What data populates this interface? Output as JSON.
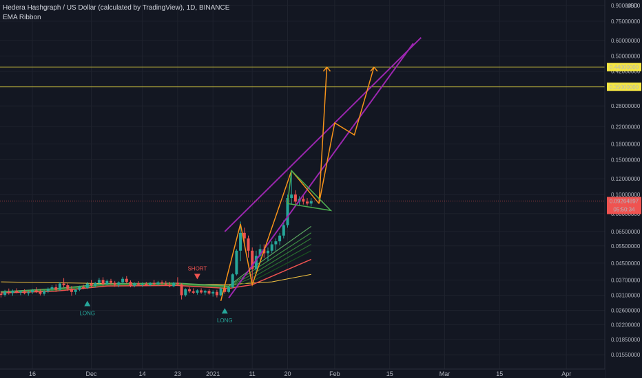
{
  "header": {
    "title": "Hedera Hashgraph / US Dollar (calculated by TradingView), 1D, BINANCE",
    "indicator": "EMA Ribbon"
  },
  "chart_data": {
    "type": "candlestick",
    "currency_label": "USD",
    "y_scale": "log",
    "ylim": [
      0.0148,
      0.93
    ],
    "y_ticks": [
      "0.01550000",
      "0.01850000",
      "0.02200000",
      "0.02600000",
      "0.03100000",
      "0.03700000",
      "0.04500000",
      "0.05500000",
      "0.06500000",
      "0.08000000",
      "0.10000000",
      "0.12000000",
      "0.15000000",
      "0.18000000",
      "0.22000000",
      "0.28000000",
      "0.35000000",
      "0.42000000",
      "0.50000000",
      "0.60000000",
      "0.75000000",
      "0.90000000"
    ],
    "y_tick_values": [
      0.0155,
      0.0185,
      0.022,
      0.026,
      0.031,
      0.037,
      0.045,
      0.055,
      0.065,
      0.08,
      0.1,
      0.12,
      0.15,
      0.18,
      0.22,
      0.28,
      0.35,
      0.42,
      0.5,
      0.6,
      0.75,
      0.9
    ],
    "x_ticks": [
      {
        "label": "16",
        "date": "2020-11-16"
      },
      {
        "label": "Dec",
        "date": "2020-12-01"
      },
      {
        "label": "14",
        "date": "2020-12-14"
      },
      {
        "label": "23",
        "date": "2020-12-23"
      },
      {
        "label": "2021",
        "date": "2021-01-01"
      },
      {
        "label": "11",
        "date": "2021-01-11"
      },
      {
        "label": "20",
        "date": "2021-01-20"
      },
      {
        "label": "Feb",
        "date": "2021-02-01"
      },
      {
        "label": "15",
        "date": "2021-02-15"
      },
      {
        "label": "Mar",
        "date": "2021-03-01"
      },
      {
        "label": "15",
        "date": "2021-03-15"
      },
      {
        "label": "Apr",
        "date": "2021-04-01"
      }
    ],
    "current_price": {
      "label": "0.09264897",
      "value": 0.09264897,
      "color": "#ef5350"
    },
    "countdown": {
      "label": "05:50:34"
    },
    "horizontal_levels": [
      {
        "label": "0.44000000",
        "value": 0.44,
        "color": "#f5e642"
      },
      {
        "label": "0.35000000",
        "value": 0.35,
        "color": "#f5e642"
      }
    ],
    "signals": [
      {
        "label": "LONG",
        "date": "2020-11-30",
        "direction": "up",
        "price": 0.0305,
        "color": "#26a69a"
      },
      {
        "label": "SHORT",
        "date": "2020-12-28",
        "direction": "down",
        "price": 0.0385,
        "color": "#ef5350"
      },
      {
        "label": "LONG",
        "date": "2021-01-04",
        "direction": "up",
        "price": 0.028,
        "color": "#26a69a"
      }
    ],
    "candles": [
      [
        "2020-11-08",
        0.0315,
        0.0325,
        0.0302,
        0.0311
      ],
      [
        "2020-11-09",
        0.0311,
        0.033,
        0.0305,
        0.0322
      ],
      [
        "2020-11-10",
        0.0322,
        0.0335,
        0.0312,
        0.0318
      ],
      [
        "2020-11-11",
        0.0318,
        0.0331,
        0.0308,
        0.0326
      ],
      [
        "2020-11-12",
        0.0326,
        0.0336,
        0.0317,
        0.032
      ],
      [
        "2020-11-13",
        0.032,
        0.0328,
        0.031,
        0.0324
      ],
      [
        "2020-11-14",
        0.0324,
        0.0332,
        0.0313,
        0.0317
      ],
      [
        "2020-11-15",
        0.0317,
        0.0327,
        0.0308,
        0.0321
      ],
      [
        "2020-11-16",
        0.0321,
        0.0334,
        0.0314,
        0.0328
      ],
      [
        "2020-11-17",
        0.0328,
        0.034,
        0.0318,
        0.0323
      ],
      [
        "2020-11-18",
        0.0323,
        0.0333,
        0.0309,
        0.0315
      ],
      [
        "2020-11-19",
        0.0315,
        0.0329,
        0.0308,
        0.0325
      ],
      [
        "2020-11-20",
        0.0325,
        0.0339,
        0.0318,
        0.0333
      ],
      [
        "2020-11-21",
        0.0333,
        0.0348,
        0.0325,
        0.034
      ],
      [
        "2020-11-22",
        0.034,
        0.0352,
        0.0322,
        0.033
      ],
      [
        "2020-11-23",
        0.033,
        0.0361,
        0.0326,
        0.0355
      ],
      [
        "2020-11-24",
        0.0355,
        0.0378,
        0.034,
        0.0348
      ],
      [
        "2020-11-25",
        0.0348,
        0.0356,
        0.0326,
        0.0334
      ],
      [
        "2020-11-26",
        0.0334,
        0.0345,
        0.0308,
        0.0322
      ],
      [
        "2020-11-27",
        0.0322,
        0.0334,
        0.0312,
        0.033
      ],
      [
        "2020-11-28",
        0.033,
        0.0346,
        0.0325,
        0.0341
      ],
      [
        "2020-11-29",
        0.0341,
        0.035,
        0.0332,
        0.0337
      ],
      [
        "2020-11-30",
        0.0337,
        0.0362,
        0.0333,
        0.0355
      ],
      [
        "2020-12-01",
        0.0355,
        0.037,
        0.034,
        0.0346
      ],
      [
        "2020-12-02",
        0.0346,
        0.0362,
        0.0338,
        0.0357
      ],
      [
        "2020-12-03",
        0.0357,
        0.0379,
        0.035,
        0.037
      ],
      [
        "2020-12-04",
        0.037,
        0.0382,
        0.0345,
        0.0352
      ],
      [
        "2020-12-05",
        0.0352,
        0.0372,
        0.0348,
        0.0366
      ],
      [
        "2020-12-06",
        0.0366,
        0.0375,
        0.035,
        0.0358
      ],
      [
        "2020-12-07",
        0.0358,
        0.0366,
        0.0342,
        0.035
      ],
      [
        "2020-12-08",
        0.035,
        0.0364,
        0.034,
        0.036
      ],
      [
        "2020-12-09",
        0.036,
        0.0384,
        0.0352,
        0.0375
      ],
      [
        "2020-12-10",
        0.0375,
        0.0387,
        0.0355,
        0.0362
      ],
      [
        "2020-12-11",
        0.0362,
        0.0368,
        0.034,
        0.0346
      ],
      [
        "2020-12-12",
        0.0346,
        0.036,
        0.034,
        0.0356
      ],
      [
        "2020-12-13",
        0.0356,
        0.0365,
        0.0346,
        0.035
      ],
      [
        "2020-12-14",
        0.035,
        0.036,
        0.0342,
        0.0354
      ],
      [
        "2020-12-15",
        0.0354,
        0.0362,
        0.0344,
        0.0348
      ],
      [
        "2020-12-16",
        0.0348,
        0.0362,
        0.0344,
        0.0358
      ],
      [
        "2020-12-17",
        0.0358,
        0.037,
        0.0348,
        0.0352
      ],
      [
        "2020-12-18",
        0.0352,
        0.0366,
        0.0346,
        0.036
      ],
      [
        "2020-12-19",
        0.036,
        0.0368,
        0.035,
        0.0355
      ],
      [
        "2020-12-20",
        0.0355,
        0.0366,
        0.0346,
        0.035
      ],
      [
        "2020-12-21",
        0.035,
        0.0362,
        0.034,
        0.0344
      ],
      [
        "2020-12-22",
        0.0344,
        0.0362,
        0.034,
        0.0358
      ],
      [
        "2020-12-23",
        0.0358,
        0.0382,
        0.0345,
        0.0352
      ],
      [
        "2020-12-24",
        0.0352,
        0.0356,
        0.0295,
        0.031
      ],
      [
        "2020-12-25",
        0.031,
        0.0336,
        0.0305,
        0.0332
      ],
      [
        "2020-12-26",
        0.0332,
        0.034,
        0.0318,
        0.0324
      ],
      [
        "2020-12-27",
        0.0324,
        0.0336,
        0.0314,
        0.0319
      ],
      [
        "2020-12-28",
        0.0319,
        0.0332,
        0.0312,
        0.0328
      ],
      [
        "2020-12-29",
        0.0328,
        0.0336,
        0.0315,
        0.032
      ],
      [
        "2020-12-30",
        0.032,
        0.033,
        0.031,
        0.0326
      ],
      [
        "2020-12-31",
        0.0326,
        0.0334,
        0.0312,
        0.0316
      ],
      [
        "2021-01-01",
        0.0316,
        0.0328,
        0.0305,
        0.0322
      ],
      [
        "2021-01-02",
        0.0322,
        0.033,
        0.0302,
        0.031
      ],
      [
        "2021-01-03",
        0.031,
        0.034,
        0.0306,
        0.0336
      ],
      [
        "2021-01-04",
        0.0336,
        0.0352,
        0.0315,
        0.0322
      ],
      [
        "2021-01-05",
        0.0322,
        0.0345,
        0.0318,
        0.034
      ],
      [
        "2021-01-06",
        0.034,
        0.04,
        0.0336,
        0.0395
      ],
      [
        "2021-01-07",
        0.0395,
        0.053,
        0.039,
        0.052
      ],
      [
        "2021-01-08",
        0.052,
        0.073,
        0.046,
        0.064
      ],
      [
        "2021-01-09",
        0.064,
        0.068,
        0.056,
        0.06
      ],
      [
        "2021-01-10",
        0.06,
        0.062,
        0.048,
        0.052
      ],
      [
        "2021-01-11",
        0.052,
        0.054,
        0.0355,
        0.042
      ],
      [
        "2021-01-12",
        0.042,
        0.052,
        0.04,
        0.049
      ],
      [
        "2021-01-13",
        0.049,
        0.056,
        0.047,
        0.053
      ],
      [
        "2021-01-14",
        0.053,
        0.056,
        0.048,
        0.0505
      ],
      [
        "2021-01-15",
        0.0505,
        0.054,
        0.046,
        0.052
      ],
      [
        "2021-01-16",
        0.052,
        0.058,
        0.0505,
        0.056
      ],
      [
        "2021-01-17",
        0.056,
        0.06,
        0.052,
        0.058
      ],
      [
        "2021-01-18",
        0.058,
        0.064,
        0.0555,
        0.062
      ],
      [
        "2021-01-19",
        0.062,
        0.074,
        0.06,
        0.07
      ],
      [
        "2021-01-20",
        0.07,
        0.1,
        0.068,
        0.096
      ],
      [
        "2021-01-21",
        0.096,
        0.13,
        0.089,
        0.1
      ],
      [
        "2021-01-22",
        0.1,
        0.105,
        0.088,
        0.092
      ],
      [
        "2021-01-23",
        0.092,
        0.098,
        0.088,
        0.095
      ],
      [
        "2021-01-24",
        0.095,
        0.099,
        0.089,
        0.092
      ],
      [
        "2021-01-25",
        0.092,
        0.096,
        0.088,
        0.09
      ],
      [
        "2021-01-26",
        0.09,
        0.096,
        0.087,
        0.0926
      ]
    ],
    "ema_ribbon": {
      "colors": [
        "#1b5e20",
        "#2e7d32",
        "#388e3c",
        "#43a047",
        "#66bb6a",
        "#81c784"
      ],
      "long_color": "#f5c542",
      "base_color": "#ef5350",
      "long_ema": [
        [
          "2020-11-08",
          0.0362
        ],
        [
          "2020-12-01",
          0.0356
        ],
        [
          "2020-12-23",
          0.035
        ],
        [
          "2021-01-06",
          0.0352
        ],
        [
          "2021-01-16",
          0.0362
        ],
        [
          "2021-01-26",
          0.0395
        ]
      ],
      "base": [
        [
          "2020-11-08",
          0.0318
        ],
        [
          "2020-11-22",
          0.0325
        ],
        [
          "2020-12-05",
          0.0345
        ],
        [
          "2020-12-23",
          0.0347
        ],
        [
          "2021-01-05",
          0.0335
        ],
        [
          "2021-01-11",
          0.035
        ],
        [
          "2021-01-26",
          0.047
        ]
      ],
      "bands": [
        [
          [
            "2020-11-08",
            0.0319
          ],
          [
            "2020-11-22",
            0.0327
          ],
          [
            "2020-12-05",
            0.0347
          ],
          [
            "2020-12-23",
            0.0349
          ],
          [
            "2021-01-05",
            0.0337
          ],
          [
            "2021-01-11",
            0.0365
          ],
          [
            "2021-01-26",
            0.052
          ]
        ],
        [
          [
            "2020-11-08",
            0.032
          ],
          [
            "2020-11-22",
            0.0329
          ],
          [
            "2020-12-05",
            0.0349
          ],
          [
            "2020-12-23",
            0.0351
          ],
          [
            "2021-01-05",
            0.0339
          ],
          [
            "2021-01-11",
            0.038
          ],
          [
            "2021-01-26",
            0.056
          ]
        ],
        [
          [
            "2020-11-08",
            0.0321
          ],
          [
            "2020-11-22",
            0.0331
          ],
          [
            "2020-12-05",
            0.0351
          ],
          [
            "2020-12-23",
            0.0353
          ],
          [
            "2021-01-05",
            0.0341
          ],
          [
            "2021-01-11",
            0.0395
          ],
          [
            "2021-01-26",
            0.06
          ]
        ],
        [
          [
            "2020-11-08",
            0.0322
          ],
          [
            "2020-11-22",
            0.0333
          ],
          [
            "2020-12-05",
            0.0353
          ],
          [
            "2020-12-23",
            0.0355
          ],
          [
            "2021-01-05",
            0.0343
          ],
          [
            "2021-01-11",
            0.041
          ],
          [
            "2021-01-26",
            0.064
          ]
        ],
        [
          [
            "2020-11-08",
            0.0323
          ],
          [
            "2020-11-22",
            0.0335
          ],
          [
            "2020-12-05",
            0.0355
          ],
          [
            "2020-12-23",
            0.0357
          ],
          [
            "2021-01-05",
            0.0345
          ],
          [
            "2021-01-11",
            0.0425
          ],
          [
            "2021-01-26",
            0.069
          ]
        ]
      ]
    },
    "drawings": {
      "channel_color": "#9c27b0",
      "path_color": "#f7931a",
      "triangle_color": "#4caf50",
      "channel_upper": [
        [
          "2021-01-04",
          0.065
        ],
        [
          "2021-02-23",
          0.62
        ]
      ],
      "channel_lower": [
        [
          "2021-01-05",
          0.03
        ],
        [
          "2021-02-21",
          0.58
        ]
      ],
      "zigzag": [
        [
          "2021-01-03",
          0.029
        ],
        [
          "2021-01-08",
          0.071
        ],
        [
          "2021-01-11",
          0.035
        ],
        [
          "2021-01-21",
          0.132
        ],
        [
          "2021-01-28",
          0.09
        ]
      ],
      "projection_a": [
        [
          "2021-01-28",
          0.09
        ],
        [
          "2021-01-30",
          0.44
        ]
      ],
      "projection_b": [
        [
          "2021-01-28",
          0.09
        ],
        [
          "2021-02-01",
          0.23
        ],
        [
          "2021-02-06",
          0.2
        ],
        [
          "2021-02-11",
          0.44
        ]
      ],
      "triangle": [
        [
          "2021-01-21",
          0.132
        ],
        [
          "2021-01-31",
          0.083
        ],
        [
          "2021-01-20",
          0.09
        ]
      ]
    }
  }
}
